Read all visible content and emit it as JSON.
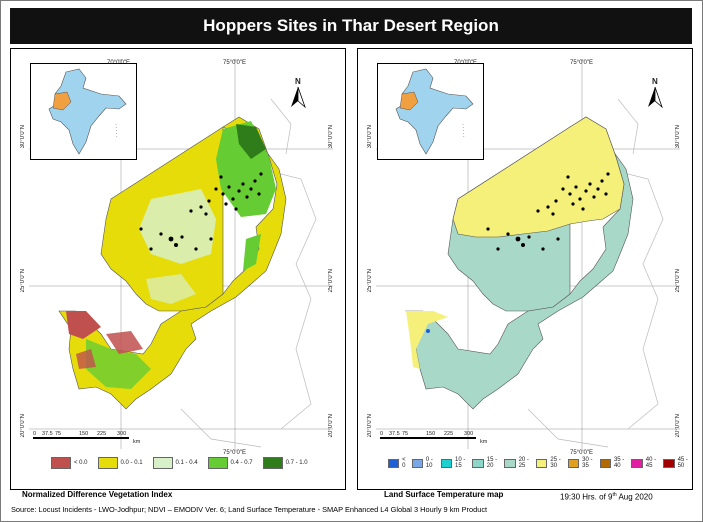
{
  "title": "Hoppers Sites in Thar Desert Region",
  "left_map": {
    "caption": "Normalized Difference Vegetation Index",
    "lon_labels": [
      "70°0'0\"E",
      "75°0'0\"E"
    ],
    "lat_labels": [
      "30°0'0\"N",
      "25°0'0\"N",
      "20°0'0\"N"
    ],
    "scale_labels": [
      "0",
      "37.5",
      "75",
      "150",
      "225",
      "300",
      "km"
    ],
    "north_label": "N",
    "legend": [
      {
        "label": "< 0.0",
        "color": "#c0504d"
      },
      {
        "label": "0.0 - 0.1",
        "color": "#e6dc0a"
      },
      {
        "label": "0.1 - 0.4",
        "color": "#d8f0c8"
      },
      {
        "label": "0.4 - 0.7",
        "color": "#66cc33"
      },
      {
        "label": "0.7 - 1.0",
        "color": "#2e7d1a"
      }
    ]
  },
  "right_map": {
    "caption": "Land Surface Temperature map",
    "lon_labels": [
      "70°0'0\"E",
      "75°0'0\"E"
    ],
    "lat_labels": [
      "30°0'0\"N",
      "25°0'0\"N",
      "20°0'0\"N"
    ],
    "scale_labels": [
      "0",
      "37.5",
      "75",
      "150",
      "225",
      "300",
      "km"
    ],
    "north_label": "N",
    "legend": [
      {
        "label": "< 0",
        "color": "#1f5fd6"
      },
      {
        "label": "0 - 10",
        "color": "#7aa8e6"
      },
      {
        "label": "10 - 15",
        "color": "#20d0d0"
      },
      {
        "label": "15 - 20",
        "color": "#8ed6c8"
      },
      {
        "label": "20 - 25",
        "color": "#a8d8c8"
      },
      {
        "label": "25 - 30",
        "color": "#f5f07a"
      },
      {
        "label": "30 - 35",
        "color": "#e0a020"
      },
      {
        "label": "35 - 40",
        "color": "#b06a00"
      },
      {
        "label": "40 - 45",
        "color": "#e020a0"
      },
      {
        "label": "45 - 50",
        "color": "#a00000"
      }
    ]
  },
  "timestamp": {
    "prefix": "19:30 Hrs. of 9",
    "sup": "th",
    "suffix": " Aug 2020"
  },
  "source": "Source: Locust Incidents - LWO-Jodhpur; NDVI – EMODIV Ver. 6; Land Surface Temperature - SMAP Enhanced L4 Global 3 Hourly 9 km Product"
}
